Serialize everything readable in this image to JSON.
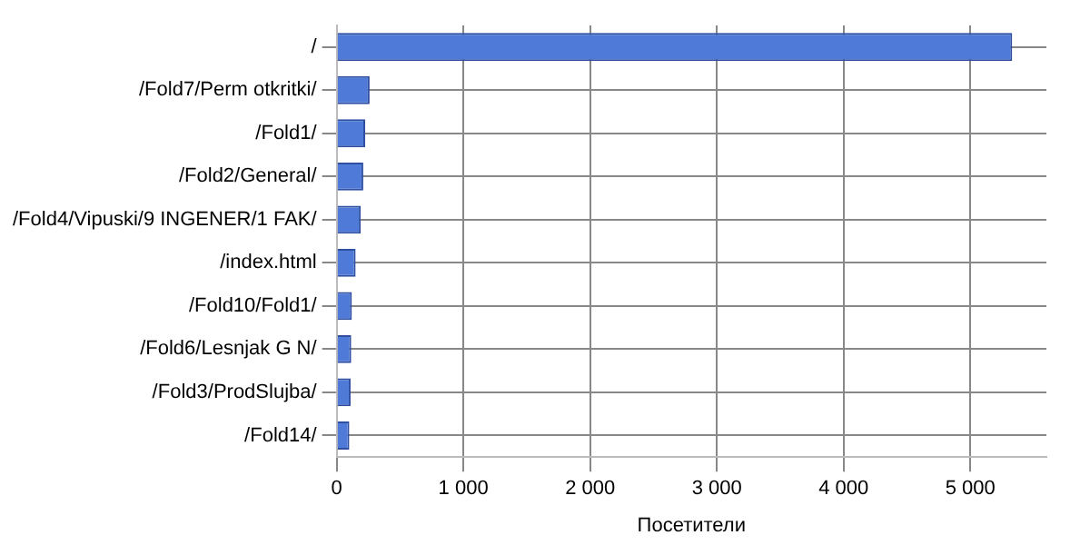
{
  "chart_data": {
    "type": "bar",
    "orientation": "horizontal",
    "xlabel": "Посетители",
    "categories": [
      "/",
      "/Fold7/Perm otkritki/",
      "/Fold1/",
      "/Fold2/General/",
      "/Fold4/Vipuski/9 INGENER/1 FAK/",
      "/index.html",
      "/Fold10/Fold1/",
      "/Fold6/Lesnjak G N/",
      "/Fold3/ProdSlujba/",
      "/Fold14/"
    ],
    "values": [
      5330,
      260,
      225,
      210,
      190,
      150,
      120,
      115,
      110,
      100
    ],
    "color": "#4f7ad8",
    "xlim": [
      0,
      5600
    ],
    "xticks": [
      0,
      {
        "value": 1000,
        "label": "1 000"
      },
      {
        "value": 2000,
        "label": "2 000"
      },
      {
        "value": 3000,
        "label": "3 000"
      },
      {
        "value": 4000,
        "label": "4 000"
      },
      {
        "value": 5000,
        "label": "5 000"
      }
    ],
    "grid": true,
    "legend": false
  }
}
